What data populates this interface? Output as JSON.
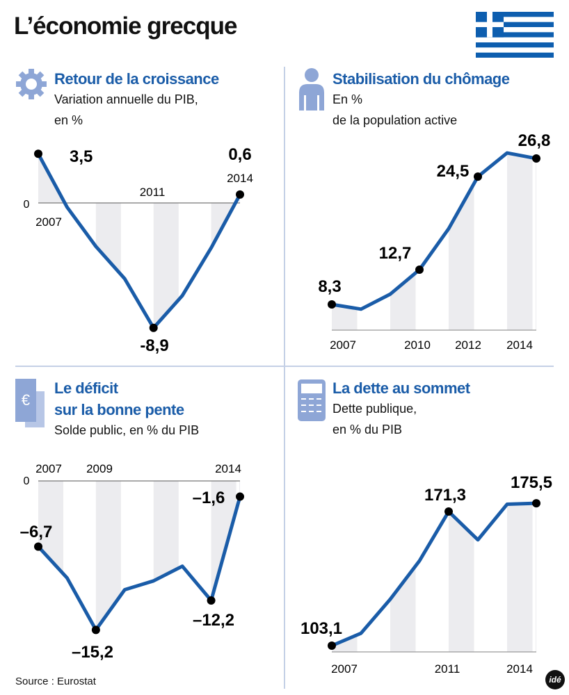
{
  "title": "L’économie grecque",
  "source": "Source : Eurostat",
  "logo": "idé",
  "colors": {
    "accent": "#1a5ca8",
    "stripe": "#ececef",
    "divider": "#c4d0e6",
    "flag_blue": "#0d5eaf"
  },
  "panels": [
    {
      "icon": "gear-icon",
      "heading": [
        "Retour de la croissance"
      ],
      "subtitle": [
        "Variation annuelle du PIB,",
        "en %"
      ]
    },
    {
      "icon": "person-icon",
      "heading": [
        "Stabilisation du chômage"
      ],
      "subtitle": [
        "En %",
        "de la population active"
      ]
    },
    {
      "icon": "euro-bill-icon",
      "heading": [
        "Le déficit",
        "sur la bonne pente"
      ],
      "subtitle": [
        "Solde public, en % du PIB"
      ]
    },
    {
      "icon": "calculator-icon",
      "heading": [
        "La dette au sommet"
      ],
      "subtitle": [
        "Dette publique,",
        "en % du PIB"
      ]
    }
  ],
  "chart_data": [
    {
      "type": "line",
      "x": [
        2007,
        2008,
        2009,
        2010,
        2011,
        2012,
        2013,
        2014
      ],
      "values": [
        3.5,
        -0.3,
        -3.1,
        -5.4,
        -8.9,
        -6.6,
        -3.2,
        0.6
      ],
      "zero_label": "0",
      "x_tick_labels": [
        "2007",
        "2011",
        "2014"
      ],
      "data_labels": [
        {
          "index": 0,
          "text": "3,5"
        },
        {
          "index": 4,
          "text": "-8,9"
        },
        {
          "index": 7,
          "text": "0,6"
        }
      ]
    },
    {
      "type": "line",
      "x": [
        2007,
        2008,
        2009,
        2010,
        2011,
        2012,
        2013,
        2014
      ],
      "values": [
        8.3,
        7.7,
        9.6,
        12.7,
        17.9,
        24.5,
        27.5,
        26.8
      ],
      "x_tick_labels": [
        "2007",
        "2010",
        "2012",
        "2014"
      ],
      "data_labels": [
        {
          "index": 0,
          "text": "8,3"
        },
        {
          "index": 3,
          "text": "12,7"
        },
        {
          "index": 5,
          "text": "24,5"
        },
        {
          "index": 7,
          "text": "26,8"
        }
      ]
    },
    {
      "type": "line",
      "x": [
        2007,
        2008,
        2009,
        2010,
        2011,
        2012,
        2013,
        2014
      ],
      "values": [
        -6.7,
        -9.9,
        -15.2,
        -11.1,
        -10.2,
        -8.7,
        -12.2,
        -1.6
      ],
      "zero_label": "0",
      "x_tick_labels": [
        "2007",
        "2009",
        "2014"
      ],
      "data_labels": [
        {
          "index": 0,
          "text": "–6,7"
        },
        {
          "index": 2,
          "text": "–15,2"
        },
        {
          "index": 6,
          "text": "–12,2"
        },
        {
          "index": 7,
          "text": "–1,6"
        }
      ]
    },
    {
      "type": "line",
      "x": [
        2007,
        2008,
        2009,
        2010,
        2011,
        2012,
        2013,
        2014
      ],
      "values": [
        103.1,
        109.4,
        126.7,
        146.2,
        171.3,
        156.9,
        175.0,
        175.5
      ],
      "x_tick_labels": [
        "2007",
        "2011",
        "2014"
      ],
      "data_labels": [
        {
          "index": 0,
          "text": "103,1"
        },
        {
          "index": 4,
          "text": "171,3"
        },
        {
          "index": 7,
          "text": "175,5"
        }
      ]
    }
  ]
}
